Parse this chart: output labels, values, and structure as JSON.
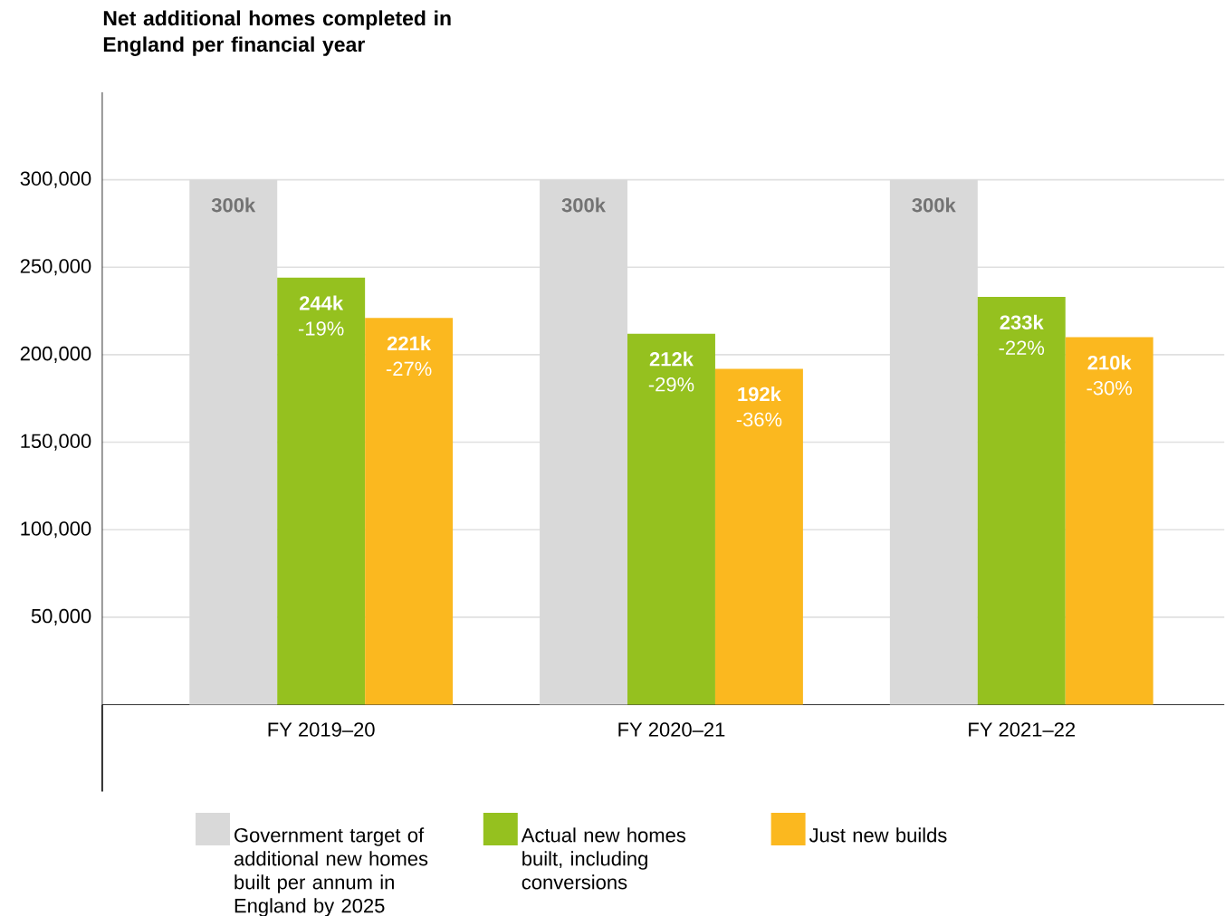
{
  "chart_data": {
    "type": "bar",
    "title": "Net additional homes completed in England per financial year",
    "categories": [
      "FY 2019–20",
      "FY 2020–21",
      "FY 2021–22"
    ],
    "series": [
      {
        "name": "Government target of additional new homes built per annum in England by 2025",
        "color": "#d9d9d9",
        "values": [
          300000,
          300000,
          300000
        ],
        "value_labels": [
          "300k",
          "300k",
          "300k"
        ]
      },
      {
        "name": "Actual new homes built, including conversions",
        "color": "#95c11f",
        "values": [
          244000,
          212000,
          233000
        ],
        "value_labels": [
          "**244k** -19%",
          "**212k** -29%",
          "**233k** -22%"
        ]
      },
      {
        "name": "Just new builds",
        "color": "#fbb81f",
        "values": [
          221000,
          192000,
          210000
        ],
        "value_labels": [
          "**221k** -27%",
          "**192k** -36%",
          "**210k** -30%"
        ]
      }
    ],
    "ylim": [
      0,
      350000
    ],
    "yticks": [
      {
        "value": 50000,
        "label": "50,000"
      },
      {
        "value": 100000,
        "label": "100,000"
      },
      {
        "value": 150000,
        "label": "150,000"
      },
      {
        "value": 200000,
        "label": "200,000"
      },
      {
        "value": 250000,
        "label": "250,000"
      },
      {
        "value": 300000,
        "label": "300,000"
      }
    ],
    "grid": "y",
    "legend": "bottom"
  }
}
